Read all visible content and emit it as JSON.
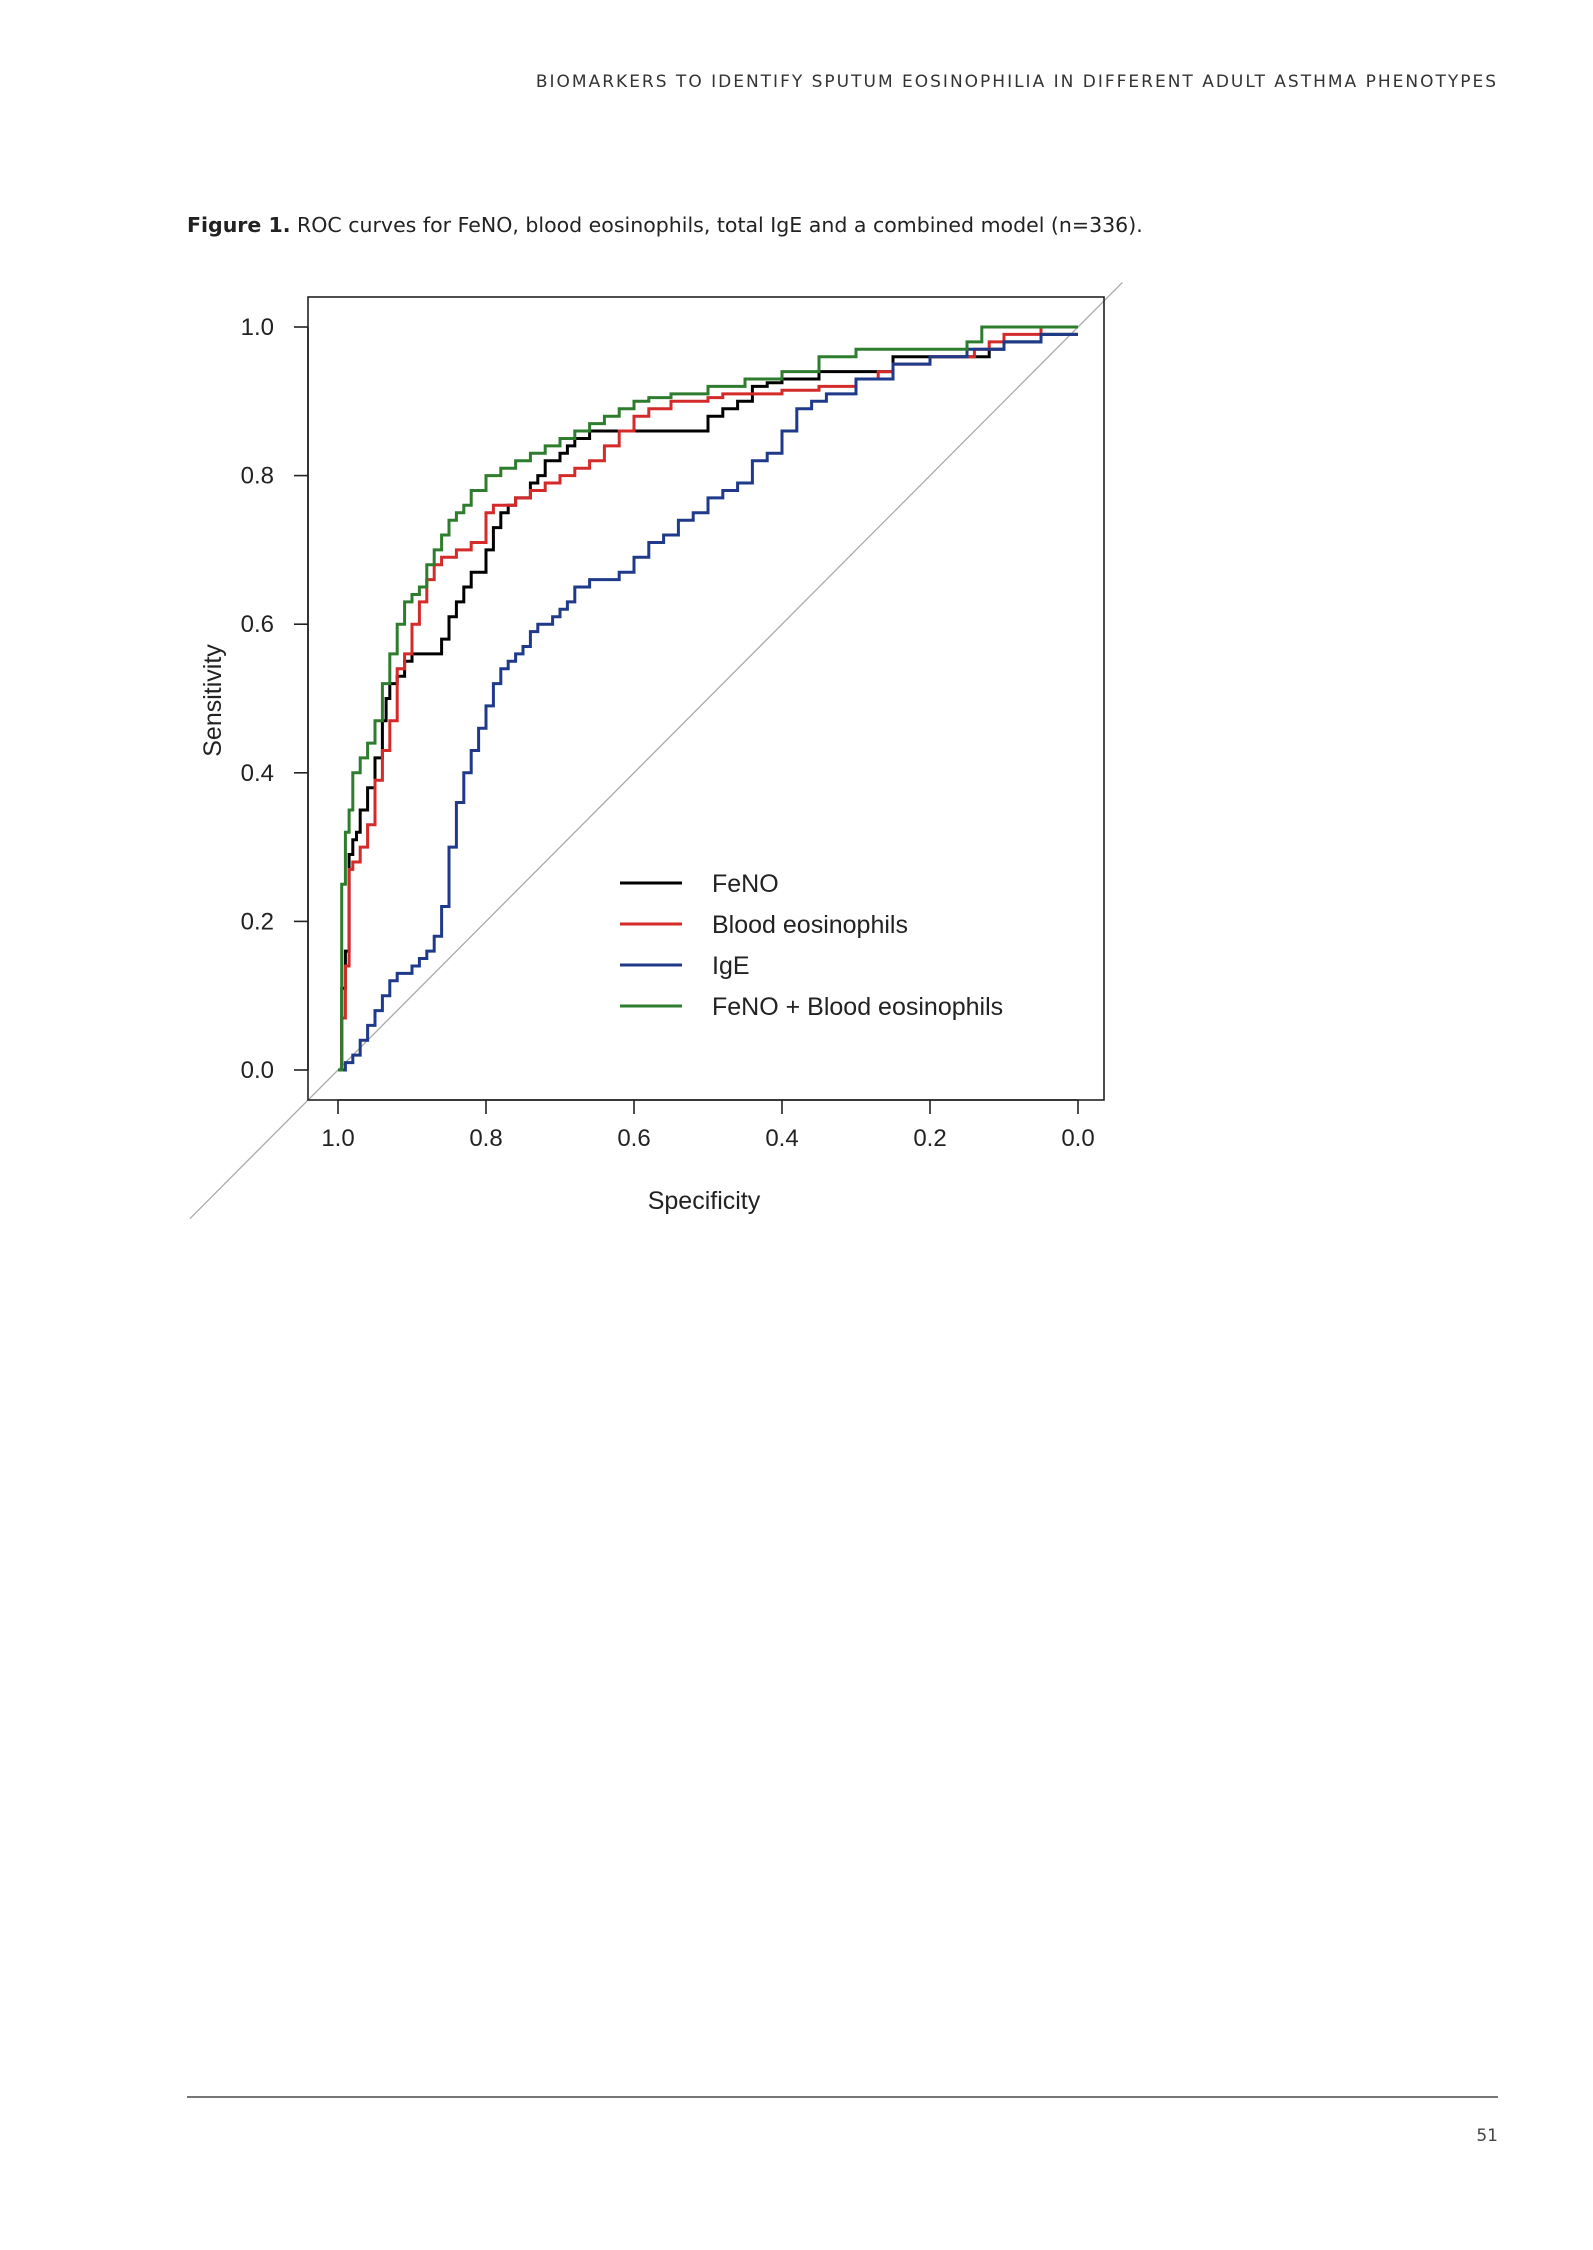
{
  "header": {
    "running_title": "BIOMARKERS TO IDENTIFY SPUTUM EOSINOPHILIA IN DIFFERENT ADULT ASTHMA PHENOTYPES"
  },
  "caption": {
    "label": "Figure 1.",
    "text": " ROC curves for FeNO, blood eosinophils, total IgE and a combined model (n=336)."
  },
  "footer": {
    "page_number": "51"
  },
  "chart_data": {
    "type": "line",
    "title": "",
    "xlabel": "Specificity",
    "ylabel": "Sensitivity",
    "xlim": [
      1.04,
      -0.04
    ],
    "ylim": [
      -0.04,
      1.04
    ],
    "x_reversed": true,
    "xticks": [
      "1.0",
      "0.8",
      "0.6",
      "0.4",
      "0.2",
      "0.0"
    ],
    "yticks": [
      "0.0",
      "0.2",
      "0.4",
      "0.6",
      "0.8",
      "1.0"
    ],
    "diagonal_reference": true,
    "legend_position": "bottom-right inside",
    "series": [
      {
        "name": "FeNO",
        "color": "#000000",
        "x": [
          1.0,
          0.995,
          0.99,
          0.985,
          0.98,
          0.975,
          0.97,
          0.96,
          0.95,
          0.94,
          0.935,
          0.93,
          0.92,
          0.91,
          0.9,
          0.88,
          0.86,
          0.85,
          0.84,
          0.83,
          0.82,
          0.8,
          0.79,
          0.78,
          0.77,
          0.76,
          0.74,
          0.73,
          0.72,
          0.7,
          0.69,
          0.68,
          0.67,
          0.66,
          0.65,
          0.62,
          0.6,
          0.58,
          0.55,
          0.5,
          0.48,
          0.46,
          0.44,
          0.42,
          0.4,
          0.38,
          0.35,
          0.3,
          0.25,
          0.2,
          0.15,
          0.12,
          0.1,
          0.05,
          0.0
        ],
        "y": [
          0.0,
          0.11,
          0.16,
          0.29,
          0.31,
          0.32,
          0.35,
          0.38,
          0.42,
          0.47,
          0.5,
          0.52,
          0.53,
          0.55,
          0.56,
          0.56,
          0.58,
          0.61,
          0.63,
          0.65,
          0.67,
          0.7,
          0.73,
          0.75,
          0.76,
          0.77,
          0.79,
          0.8,
          0.82,
          0.83,
          0.84,
          0.85,
          0.85,
          0.86,
          0.86,
          0.86,
          0.86,
          0.86,
          0.86,
          0.88,
          0.89,
          0.9,
          0.92,
          0.925,
          0.93,
          0.93,
          0.94,
          0.94,
          0.96,
          0.96,
          0.96,
          0.97,
          0.98,
          0.99,
          0.99
        ]
      },
      {
        "name": "Blood eosinophils",
        "color": "#d42a2a",
        "x": [
          1.0,
          0.995,
          0.99,
          0.985,
          0.98,
          0.97,
          0.96,
          0.95,
          0.94,
          0.93,
          0.92,
          0.91,
          0.9,
          0.89,
          0.88,
          0.87,
          0.86,
          0.84,
          0.83,
          0.82,
          0.8,
          0.79,
          0.78,
          0.76,
          0.74,
          0.72,
          0.7,
          0.68,
          0.66,
          0.64,
          0.62,
          0.6,
          0.58,
          0.55,
          0.52,
          0.5,
          0.48,
          0.45,
          0.4,
          0.35,
          0.3,
          0.27,
          0.25,
          0.2,
          0.15,
          0.14,
          0.12,
          0.1,
          0.05,
          0.0
        ],
        "y": [
          0.0,
          0.07,
          0.14,
          0.27,
          0.28,
          0.3,
          0.33,
          0.39,
          0.43,
          0.47,
          0.54,
          0.56,
          0.6,
          0.63,
          0.66,
          0.68,
          0.69,
          0.7,
          0.7,
          0.71,
          0.75,
          0.76,
          0.76,
          0.77,
          0.78,
          0.79,
          0.8,
          0.81,
          0.82,
          0.84,
          0.86,
          0.88,
          0.89,
          0.9,
          0.9,
          0.905,
          0.91,
          0.91,
          0.915,
          0.92,
          0.93,
          0.94,
          0.95,
          0.96,
          0.96,
          0.97,
          0.98,
          0.99,
          1.0,
          1.0
        ]
      },
      {
        "name": "IgE",
        "color": "#1f3a8a",
        "x": [
          1.0,
          0.99,
          0.98,
          0.97,
          0.96,
          0.95,
          0.94,
          0.93,
          0.92,
          0.91,
          0.9,
          0.89,
          0.88,
          0.87,
          0.86,
          0.85,
          0.84,
          0.83,
          0.82,
          0.81,
          0.8,
          0.79,
          0.78,
          0.77,
          0.76,
          0.75,
          0.74,
          0.73,
          0.72,
          0.71,
          0.7,
          0.69,
          0.68,
          0.66,
          0.64,
          0.62,
          0.6,
          0.58,
          0.56,
          0.54,
          0.52,
          0.5,
          0.48,
          0.46,
          0.44,
          0.42,
          0.4,
          0.38,
          0.36,
          0.34,
          0.3,
          0.25,
          0.2,
          0.15,
          0.1,
          0.05,
          0.0
        ],
        "y": [
          0.0,
          0.01,
          0.02,
          0.04,
          0.06,
          0.08,
          0.1,
          0.12,
          0.13,
          0.13,
          0.14,
          0.15,
          0.16,
          0.18,
          0.22,
          0.3,
          0.36,
          0.4,
          0.43,
          0.46,
          0.49,
          0.52,
          0.54,
          0.55,
          0.56,
          0.57,
          0.59,
          0.6,
          0.6,
          0.61,
          0.62,
          0.63,
          0.65,
          0.66,
          0.66,
          0.67,
          0.69,
          0.71,
          0.72,
          0.74,
          0.75,
          0.77,
          0.78,
          0.79,
          0.82,
          0.83,
          0.86,
          0.89,
          0.9,
          0.91,
          0.93,
          0.95,
          0.96,
          0.97,
          0.98,
          0.99,
          0.99
        ]
      },
      {
        "name": "FeNO + Blood eosinophils",
        "color": "#2e7d2e",
        "x": [
          1.0,
          0.995,
          0.99,
          0.985,
          0.98,
          0.97,
          0.96,
          0.95,
          0.94,
          0.93,
          0.92,
          0.91,
          0.9,
          0.89,
          0.88,
          0.87,
          0.86,
          0.85,
          0.84,
          0.83,
          0.82,
          0.8,
          0.78,
          0.76,
          0.74,
          0.72,
          0.7,
          0.68,
          0.66,
          0.64,
          0.62,
          0.6,
          0.58,
          0.55,
          0.5,
          0.45,
          0.4,
          0.35,
          0.3,
          0.25,
          0.2,
          0.18,
          0.15,
          0.13,
          0.1,
          0.05,
          0.0
        ],
        "y": [
          0.0,
          0.25,
          0.32,
          0.35,
          0.4,
          0.42,
          0.44,
          0.47,
          0.52,
          0.56,
          0.6,
          0.63,
          0.64,
          0.65,
          0.68,
          0.7,
          0.72,
          0.74,
          0.75,
          0.76,
          0.78,
          0.8,
          0.81,
          0.82,
          0.83,
          0.84,
          0.85,
          0.86,
          0.87,
          0.88,
          0.89,
          0.9,
          0.905,
          0.91,
          0.92,
          0.93,
          0.94,
          0.96,
          0.97,
          0.97,
          0.97,
          0.97,
          0.98,
          1.0,
          1.0,
          1.0,
          1.0
        ]
      }
    ]
  }
}
